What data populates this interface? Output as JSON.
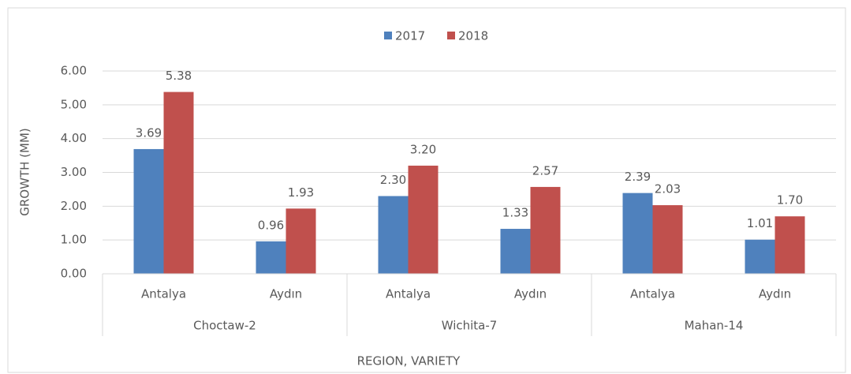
{
  "chart_data": {
    "type": "bar",
    "x_label": "REGION, VARIETY",
    "y_label": "GROWTH (MM)",
    "categories": [
      "Antalya",
      "Aydın",
      "Antalya",
      "Aydın",
      "Antalya",
      "Aydın"
    ],
    "groups": [
      "Choctaw-2",
      "Wichita-7",
      "Mahan-14"
    ],
    "series": [
      {
        "name": "2017",
        "color": "#4f81bd",
        "values": [
          3.69,
          0.96,
          2.3,
          1.33,
          2.39,
          1.01
        ],
        "value_labels": [
          "3.69",
          "0.96",
          "2.30",
          "1.33",
          "2.39",
          "1.01"
        ]
      },
      {
        "name": "2018",
        "color": "#c0504d",
        "values": [
          5.38,
          1.93,
          3.2,
          2.57,
          2.03,
          1.7
        ],
        "value_labels": [
          "5.38",
          "1.93",
          "3.20",
          "2.57",
          "2.03",
          "1.70"
        ]
      }
    ],
    "ylim": [
      0,
      6
    ],
    "yticks": [
      {
        "value": 0,
        "label": "0.00"
      },
      {
        "value": 1,
        "label": "1.00"
      },
      {
        "value": 2,
        "label": "2.00"
      },
      {
        "value": 3,
        "label": "3.00"
      },
      {
        "value": 4,
        "label": "4.00"
      },
      {
        "value": 5,
        "label": "5.00"
      },
      {
        "value": 6,
        "label": "6.00"
      }
    ],
    "grid": true,
    "legend": "top"
  }
}
